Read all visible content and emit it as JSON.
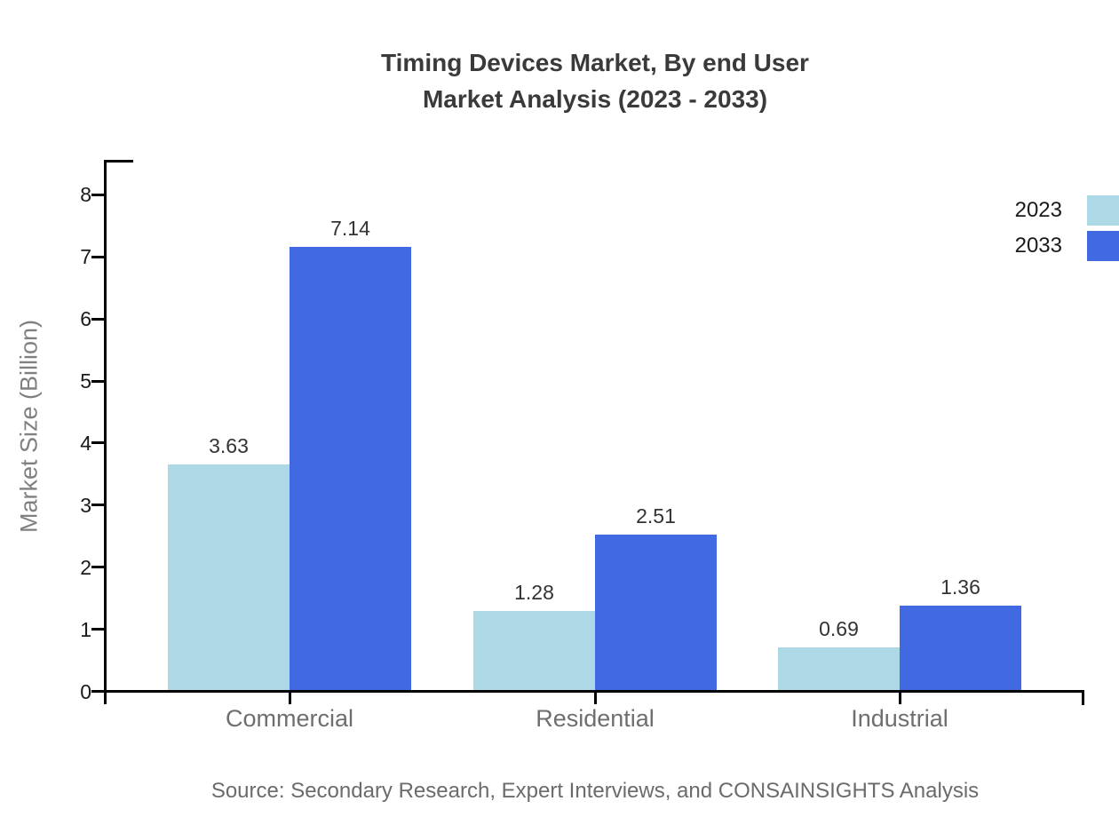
{
  "title": {
    "line1": "Timing Devices Market, By end User",
    "line2": "Market Analysis (2023 - 2033)"
  },
  "source": "Source: Secondary Research, Expert Interviews, and CONSAINSIGHTS Analysis",
  "colors": {
    "series_2023": "#ADD8E6",
    "series_2033": "#4169E1",
    "title_text": "#3A3A3A",
    "tick_text": "#1A1A1A",
    "muted_text": "#6E6E6E",
    "axis_line": "#000000"
  },
  "chart_data": {
    "type": "bar",
    "title": "Timing Devices Market, By end User Market Analysis (2023 - 2033)",
    "categories": [
      "Commercial",
      "Residential",
      "Industrial"
    ],
    "series": [
      {
        "name": "2023",
        "color": "#ADD8E6",
        "values": [
          3.63,
          1.28,
          0.69
        ]
      },
      {
        "name": "2033",
        "color": "#4169E1",
        "values": [
          7.14,
          2.51,
          1.36
        ]
      }
    ],
    "xlabel": "",
    "ylabel": "Market Size (Billion)",
    "ylim": [
      0,
      8.55
    ],
    "yticks": [
      0,
      1,
      2,
      3,
      4,
      5,
      6,
      7,
      8
    ],
    "grid": false,
    "legend_position": "top-right",
    "value_labels": true
  }
}
